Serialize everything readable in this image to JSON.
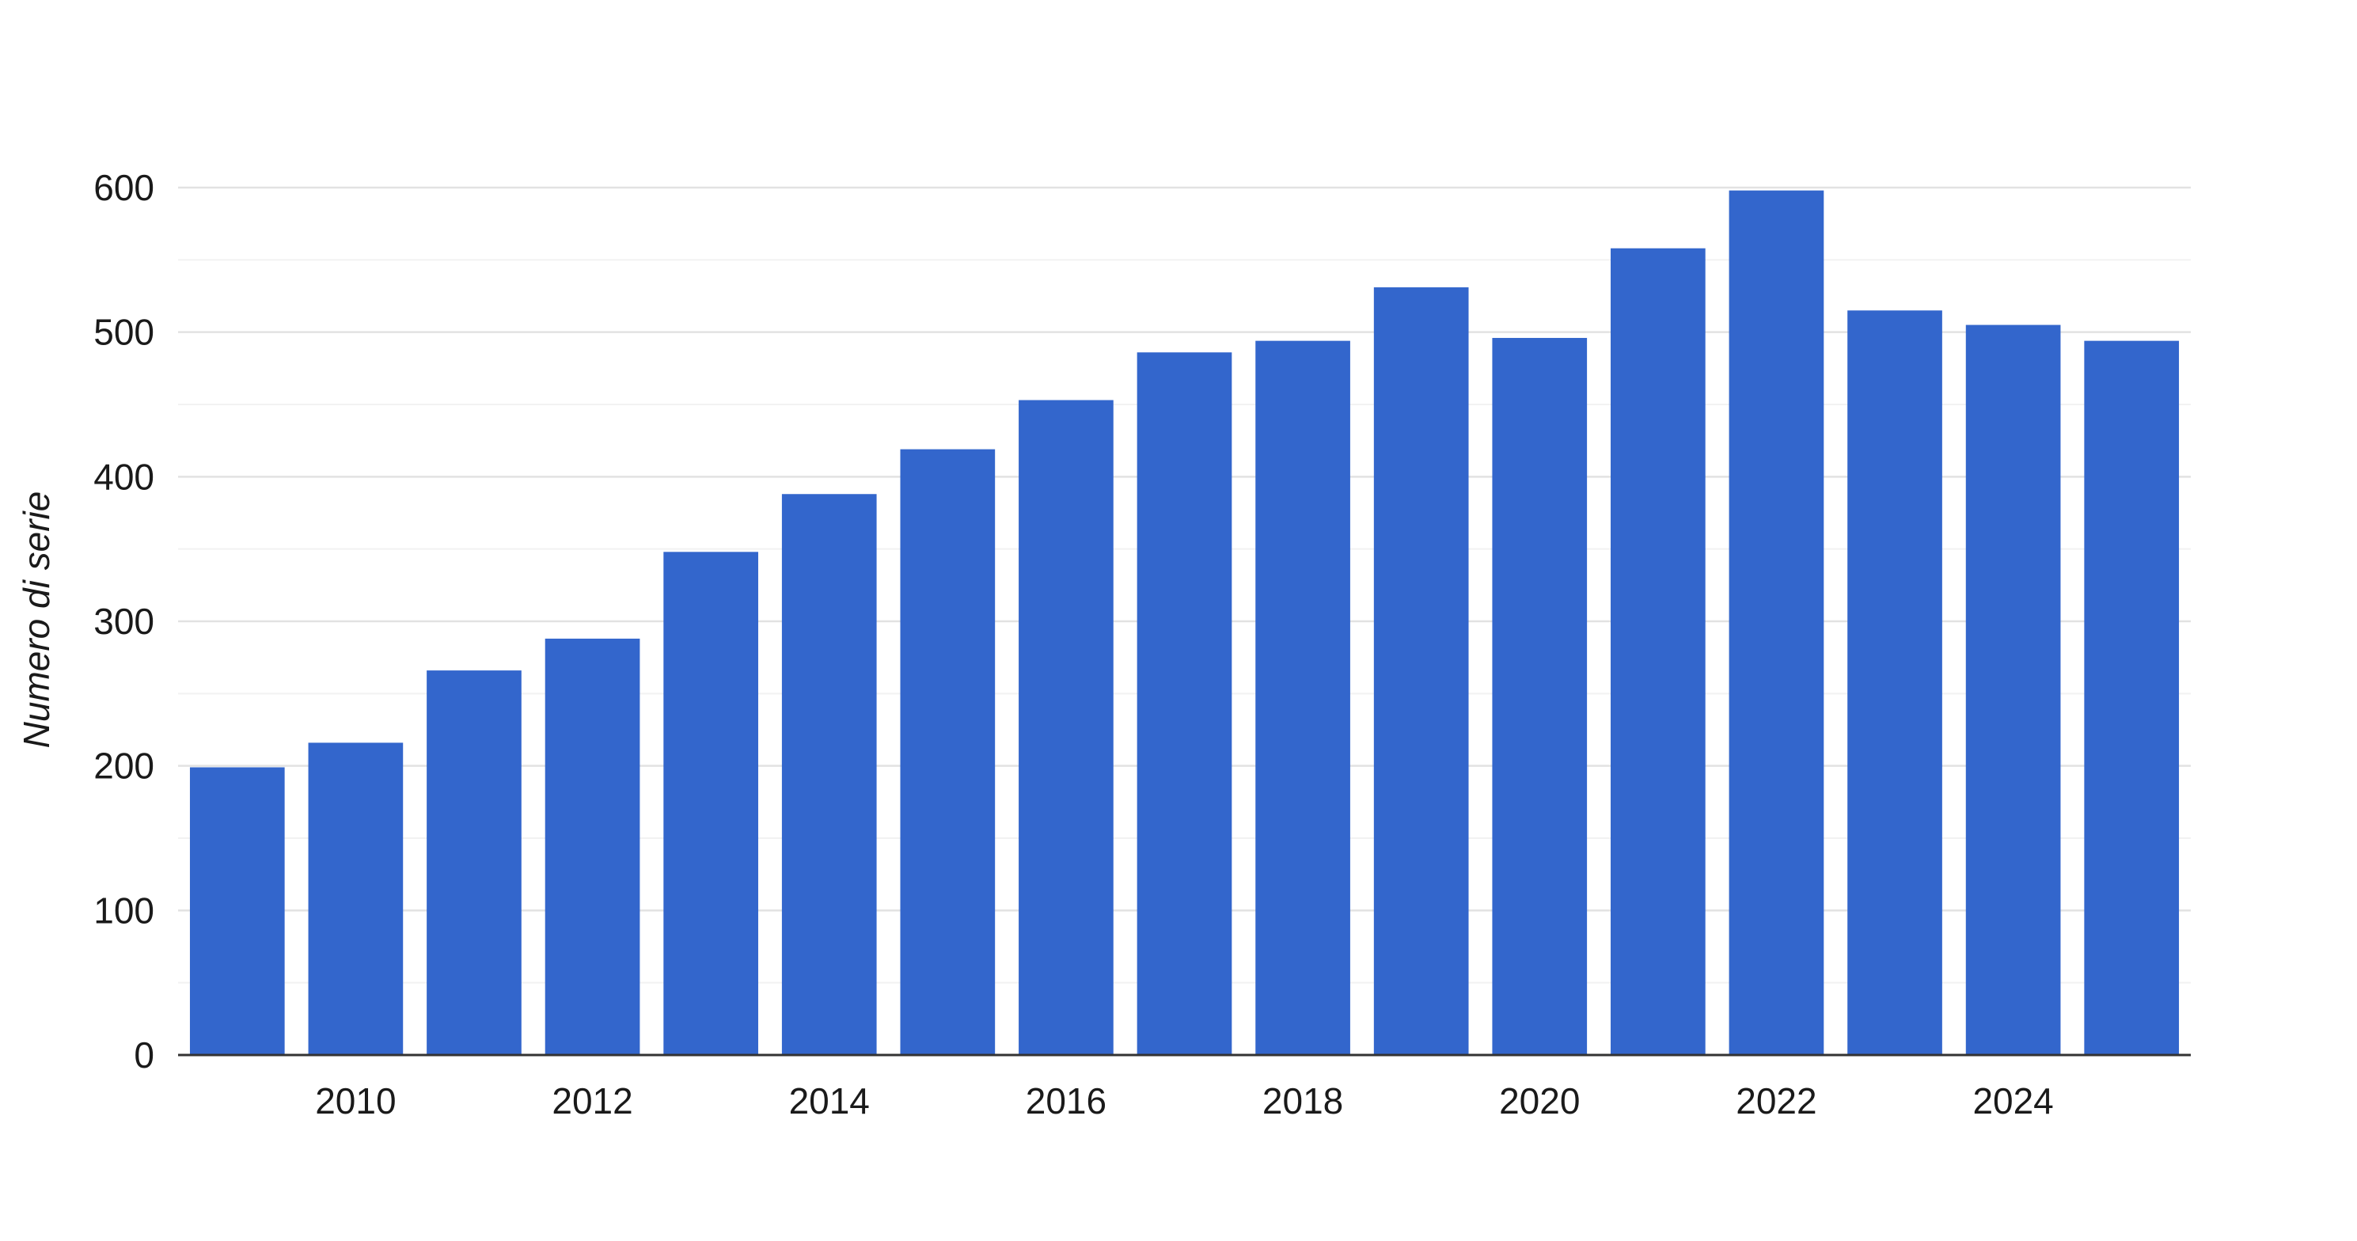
{
  "chart_data": {
    "type": "bar",
    "x": [
      2009,
      2010,
      2011,
      2012,
      2013,
      2014,
      2015,
      2016,
      2017,
      2018,
      2019,
      2020,
      2021,
      2022,
      2023,
      2024,
      2025
    ],
    "values": [
      199,
      216,
      266,
      288,
      348,
      388,
      419,
      453,
      486,
      494,
      531,
      496,
      558,
      598,
      515,
      505,
      494
    ],
    "x_tick_labels": [
      "2010",
      "2012",
      "2014",
      "2016",
      "2018",
      "2020",
      "2022",
      "2024"
    ],
    "x_tick_values": [
      2010,
      2012,
      2014,
      2016,
      2018,
      2020,
      2022,
      2024
    ],
    "y_ticks": [
      0,
      100,
      200,
      300,
      400,
      500,
      600
    ],
    "ylim": [
      0,
      600
    ],
    "minor_gridlines_y": [
      50,
      150,
      250,
      350,
      450,
      550
    ],
    "ylabel": "Numero di serie",
    "xlabel": "",
    "title": "",
    "grid": true,
    "bar_color": "#3366cc"
  }
}
